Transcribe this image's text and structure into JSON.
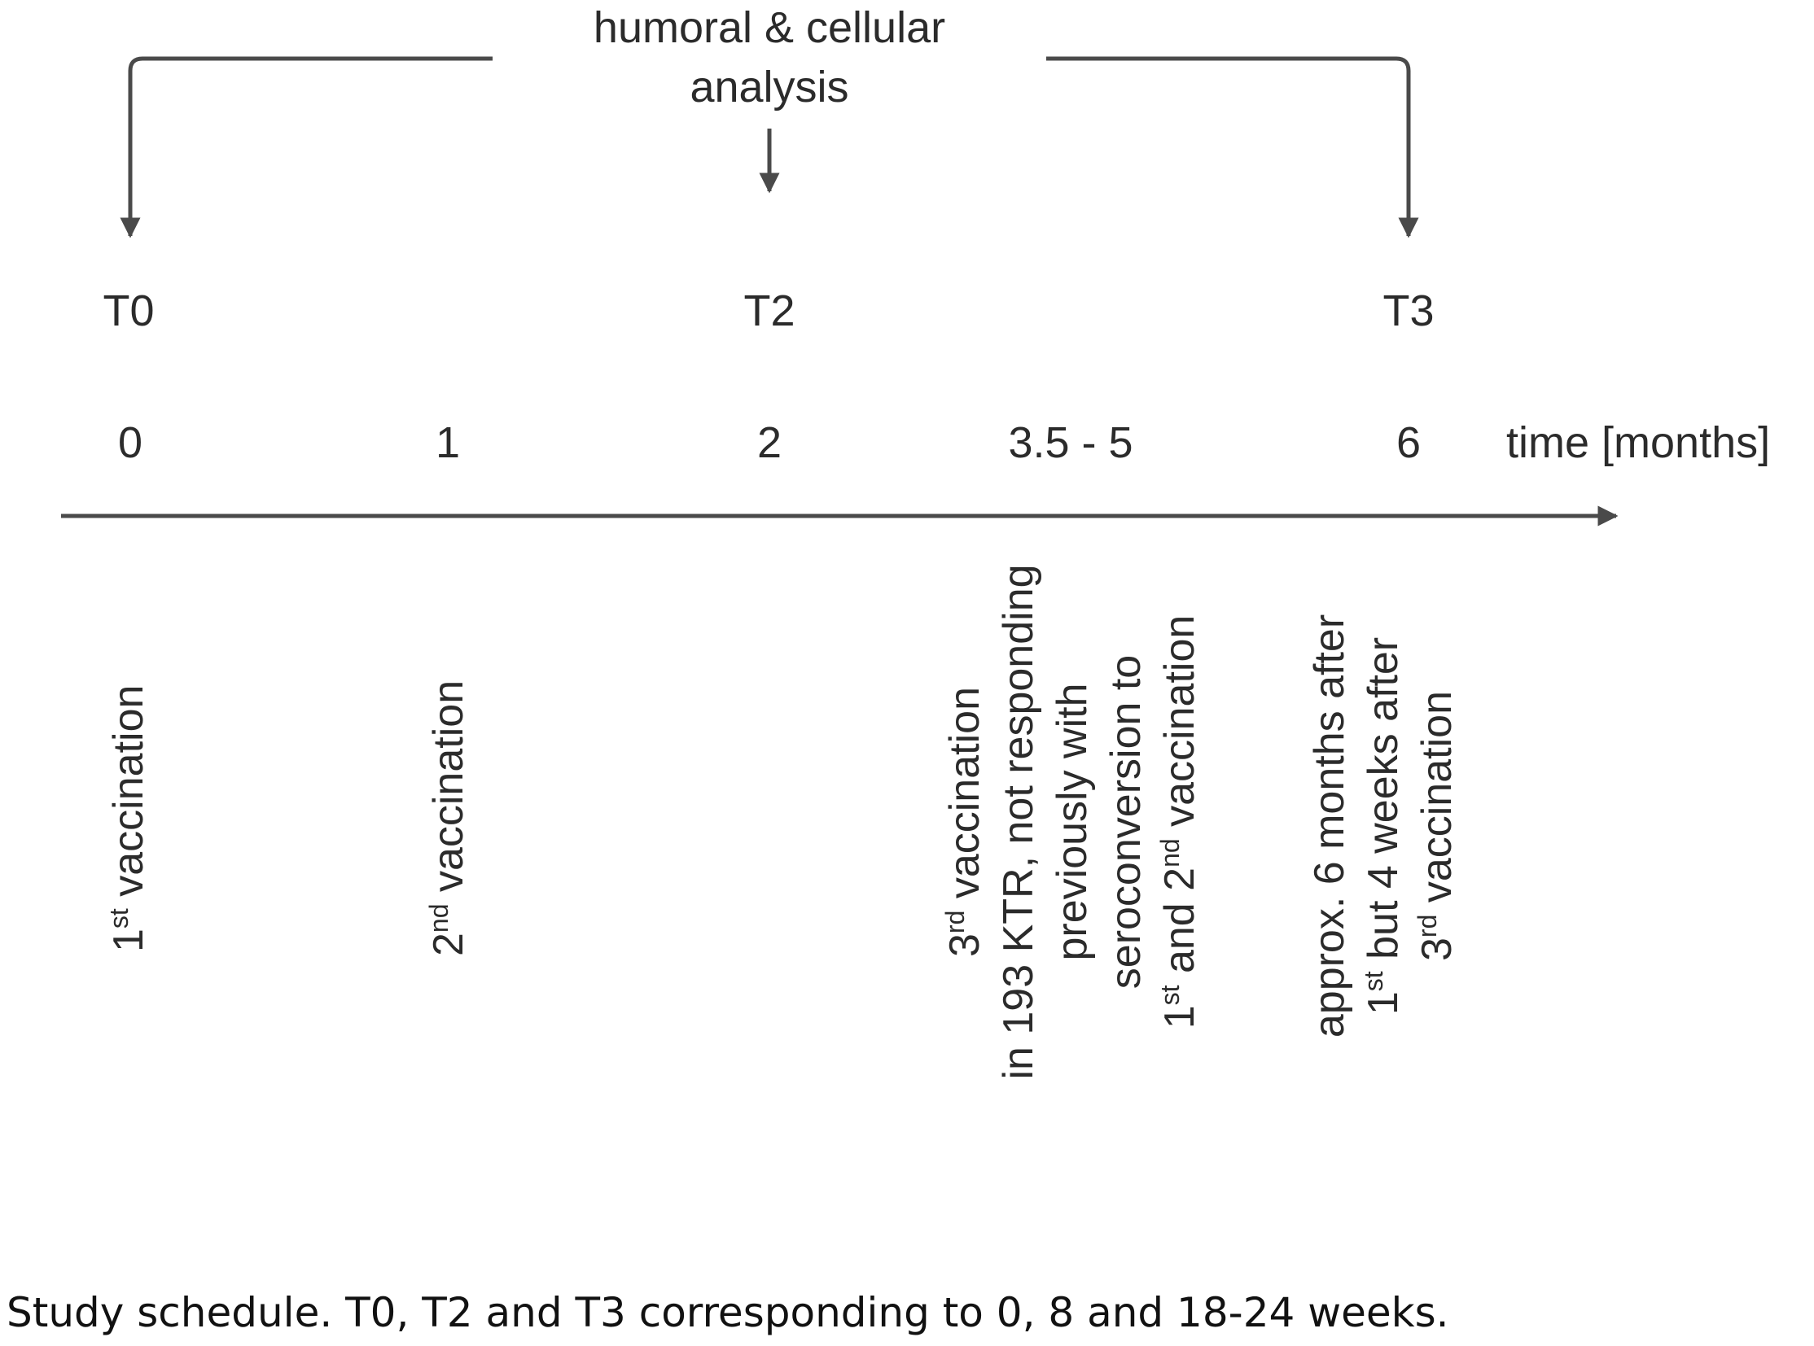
{
  "header": {
    "line1": "humoral & cellular",
    "line2": "analysis"
  },
  "timepoints": {
    "t0": "T0",
    "t2": "T2",
    "t3": "T3"
  },
  "axis": {
    "ticks": [
      "0",
      "1",
      "2",
      "3.5 - 5",
      "6"
    ],
    "unit_label": "time [months]"
  },
  "events": {
    "first": {
      "num": "1",
      "sup": "st",
      "rest": " vaccination"
    },
    "second": {
      "num": "2",
      "sup": "nd",
      "rest": " vaccination"
    },
    "third": {
      "l1_num": "3",
      "l1_sup": "rd",
      "l1_rest": " vaccination",
      "l2": "in 193 KTR, not responding",
      "l3": "previously with",
      "l4": "seroconversion to",
      "l5_a": "1",
      "l5_sup1": "st",
      "l5_b": " and 2",
      "l5_sup2": "nd",
      "l5_c": " vaccination"
    },
    "fourth": {
      "l1": "approx. 6 months after",
      "l2_a": "1",
      "l2_sup": "st",
      "l2_b": " but 4 weeks after",
      "l3_a": "3",
      "l3_sup": "rd",
      "l3_b": " vaccination"
    }
  },
  "caption": "Study schedule. T0, T2 and T3 corresponding to 0, 8 and 18-24 weeks."
}
